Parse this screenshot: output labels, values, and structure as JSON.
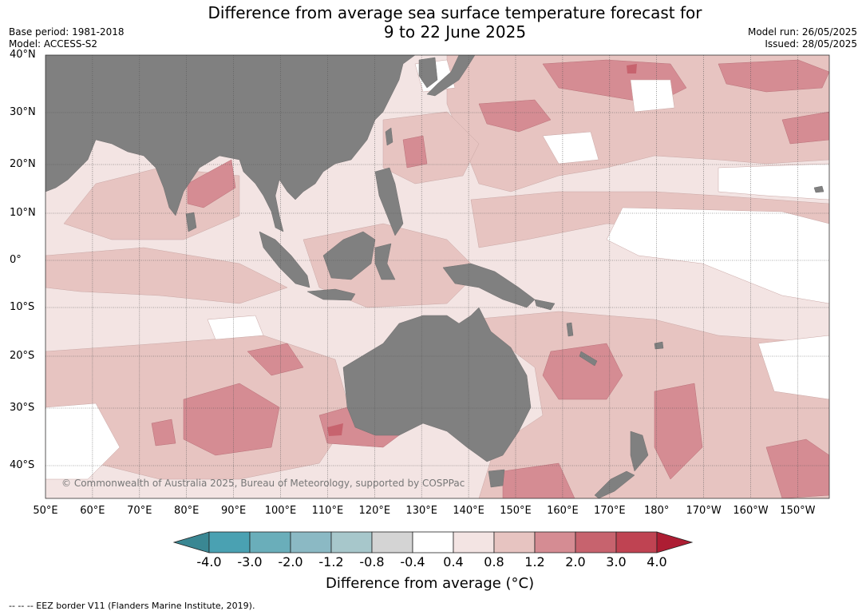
{
  "title_line1": "Difference from average sea surface temperature forecast for",
  "title_line2": "9 to 22 June 2025",
  "meta_left": {
    "base_period": "Base period: 1981-2018",
    "model": "Model: ACCESS-S2"
  },
  "meta_right": {
    "model_run": "Model run: 26/05/2025",
    "issued": "Issued: 28/05/2025"
  },
  "lat_labels": [
    "40°N",
    "30°N",
    "20°N",
    "10°N",
    "0°",
    "10°S",
    "20°S",
    "30°S",
    "40°S"
  ],
  "lon_labels": [
    "50°E",
    "60°E",
    "70°E",
    "80°E",
    "90°E",
    "100°E",
    "110°E",
    "120°E",
    "130°E",
    "140°E",
    "150°E",
    "160°E",
    "170°E",
    "180°",
    "170°W",
    "160°W",
    "150°W"
  ],
  "copyright": "© Commonwealth of Australia 2025, Bureau of Meteorology, supported by COSPPac",
  "colorbar": {
    "ticks": [
      "-4.0",
      "-3.0",
      "-2.0",
      "-1.2",
      "-0.8",
      "-0.4",
      "0.4",
      "0.8",
      "1.2",
      "2.0",
      "3.0",
      "4.0"
    ],
    "colors": [
      "#3a8793",
      "#4aa1b2",
      "#6aaeba",
      "#8bb9c4",
      "#a7c7cb",
      "#d4d4d4",
      "#ffffff",
      "#f3e4e3",
      "#e7c4c1",
      "#d58c93",
      "#c7636e",
      "#bf4352",
      "#ad1d33"
    ],
    "title": "Difference from average (°C)"
  },
  "footnote": "-- -- -- EEZ border V11 (Flanders Marine Institute, 2019).",
  "colors": {
    "land": "#808080",
    "anomaly_0_4_to_0_8": "#f3e4e3",
    "anomaly_0_8_to_1_2": "#e7c4c1",
    "anomaly_1_2_to_2_0": "#d58c93",
    "anomaly_2_0_to_3_0": "#c7636e"
  }
}
